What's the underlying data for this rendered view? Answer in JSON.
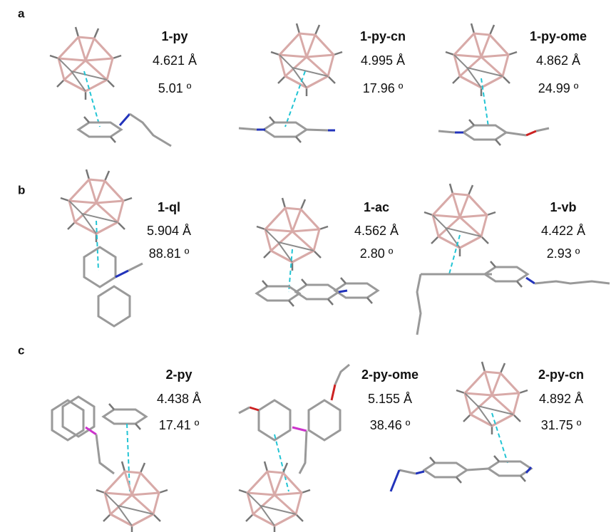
{
  "panels": [
    {
      "label": "a",
      "entries": [
        {
          "name": "1-py",
          "distance": "4.621 Å",
          "angle": "5.01 º"
        },
        {
          "name": "1-py-cn",
          "distance": "4.995 Å",
          "angle": "17.96 º"
        },
        {
          "name": "1-py-ome",
          "distance": "4.862 Å",
          "angle": "24.99 º"
        }
      ]
    },
    {
      "label": "b",
      "entries": [
        {
          "name": "1-ql",
          "distance": "5.904 Å",
          "angle": "88.81 º"
        },
        {
          "name": "1-ac",
          "distance": "4.562 Å",
          "angle": "2.80 º"
        },
        {
          "name": "1-vb",
          "distance": "4.422 Å",
          "angle": "2.93 º"
        }
      ]
    },
    {
      "label": "c",
      "entries": [
        {
          "name": "2-py",
          "distance": "4.438 Å",
          "angle": "17.41 º"
        },
        {
          "name": "2-py-ome",
          "distance": "5.155 Å",
          "angle": "38.46 º"
        },
        {
          "name": "2-py-cn",
          "distance": "4.892 Å",
          "angle": "31.75 º"
        }
      ]
    }
  ]
}
